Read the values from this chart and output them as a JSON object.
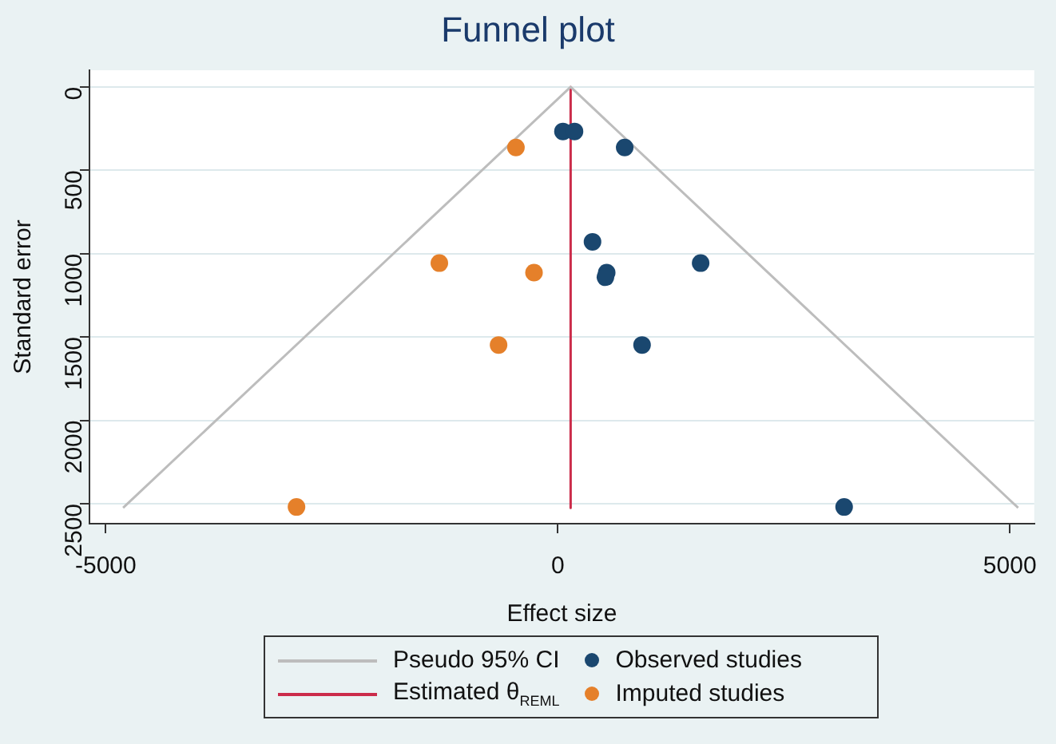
{
  "chart_data": {
    "type": "scatter",
    "title": "Funnel plot",
    "xlabel": "Effect size",
    "ylabel": "Standard error",
    "xlim": [
      -5180,
      5270
    ],
    "xticks": [
      -5000,
      0,
      5000
    ],
    "ylim": [
      2620,
      -100
    ],
    "yticks": [
      0,
      500,
      1000,
      1500,
      2000,
      2500
    ],
    "grid": "y",
    "legend": "bottom",
    "series": [
      {
        "name": "Pseudo 95% CI",
        "type": "line",
        "marker": "none",
        "color": "#bdbdbd",
        "x": [
          -4808,
          142,
          5092
        ],
        "values": [
          2525,
          0,
          2525
        ]
      },
      {
        "name": "Estimated θ$_{REML}$",
        "type": "line",
        "marker": "none",
        "color": "#cb2c4a",
        "x": [
          142,
          142
        ],
        "values": [
          0,
          2525
        ]
      },
      {
        "name": "Observed studies",
        "type": "scatter",
        "marker": "circle",
        "color": "#1a476f",
        "x": [
          57,
          185,
          740,
          384,
          1580,
          541,
          527,
          932,
          3167
        ],
        "values": [
          267,
          267,
          363,
          929,
          1057,
          1114,
          1142,
          1548,
          2520
        ]
      },
      {
        "name": "Imputed studies",
        "type": "scatter",
        "marker": "circle",
        "color": "#e5802a",
        "x": [
          -463,
          -1310,
          -263,
          -655,
          -2890
        ],
        "values": [
          363,
          1057,
          1114,
          1548,
          2520
        ]
      }
    ]
  }
}
